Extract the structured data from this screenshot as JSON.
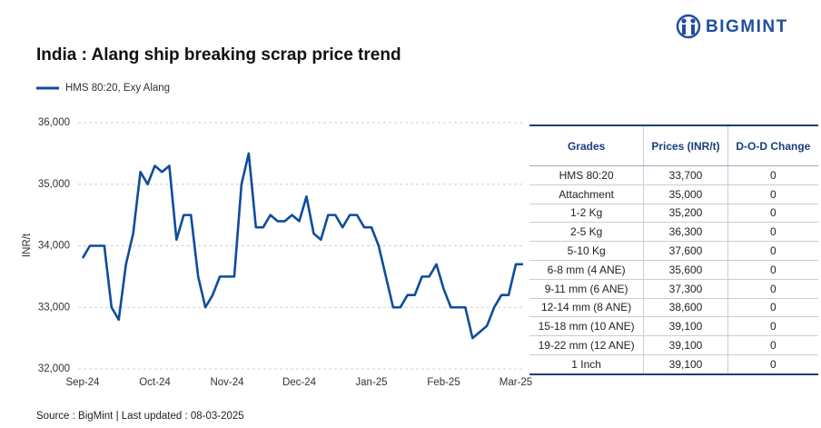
{
  "logo": "BIGMINT",
  "source": "Source : BigMint | Last updated : 08-03-2025",
  "chart_data": {
    "type": "line",
    "title": "India : Alang ship breaking scrap price trend",
    "y_label": "INR/t",
    "categories": [
      "Sep-24",
      null,
      null,
      null,
      null,
      null,
      null,
      null,
      null,
      null,
      "Oct-24",
      null,
      null,
      null,
      null,
      null,
      null,
      null,
      null,
      null,
      "Nov-24",
      null,
      null,
      null,
      null,
      null,
      null,
      null,
      null,
      null,
      "Dec-24",
      null,
      null,
      null,
      null,
      null,
      null,
      null,
      null,
      null,
      "Jan-25",
      null,
      null,
      null,
      null,
      null,
      null,
      null,
      null,
      null,
      "Feb-25",
      null,
      null,
      null,
      null,
      null,
      null,
      null,
      null,
      null,
      "Mar-25",
      null
    ],
    "series": [
      {
        "name": "HMS 80:20, Exy Alang",
        "color": "#0f4c9c",
        "values": [
          33800,
          34000,
          34000,
          34000,
          33000,
          32800,
          33700,
          34200,
          35200,
          35000,
          35300,
          35200,
          35300,
          34100,
          34500,
          34500,
          33500,
          33000,
          33200,
          33500,
          33500,
          33500,
          35000,
          35500,
          34300,
          34300,
          34500,
          34400,
          34400,
          34500,
          34400,
          34800,
          34200,
          34100,
          34500,
          34500,
          34300,
          34500,
          34500,
          34300,
          34300,
          34000,
          33500,
          33000,
          33000,
          33200,
          33200,
          33500,
          33500,
          33700,
          33300,
          33000,
          33000,
          33000,
          32500,
          32600,
          32700,
          33000,
          33200,
          33200,
          33700,
          33700
        ]
      }
    ],
    "ylim": [
      32000,
      36000
    ],
    "yticks": [
      {
        "value": 32000,
        "label": "32,000"
      },
      {
        "value": 33000,
        "label": "33,000"
      },
      {
        "value": 34000,
        "label": "34,000"
      },
      {
        "value": 35000,
        "label": "35,000"
      },
      {
        "value": 36000,
        "label": "36,000"
      }
    ],
    "grid": true
  },
  "table": {
    "columns": [
      "Grades",
      "Prices (INR/t)",
      "D-O-D Change"
    ],
    "rows": [
      [
        "HMS 80:20",
        "33,700",
        "0"
      ],
      [
        "Attachment",
        "35,000",
        "0"
      ],
      [
        "1-2 Kg",
        "35,200",
        "0"
      ],
      [
        "2-5 Kg",
        "36,300",
        "0"
      ],
      [
        "5-10 Kg",
        "37,600",
        "0"
      ],
      [
        "6-8 mm (4 ANE)",
        "35,600",
        "0"
      ],
      [
        "9-11 mm (6 ANE)",
        "37,300",
        "0"
      ],
      [
        "12-14 mm (8 ANE)",
        "38,600",
        "0"
      ],
      [
        "15-18 mm (10 ANE)",
        "39,100",
        "0"
      ],
      [
        "19-22 mm (12 ANE)",
        "39,100",
        "0"
      ],
      [
        "1 Inch",
        "39,100",
        "0"
      ]
    ]
  }
}
